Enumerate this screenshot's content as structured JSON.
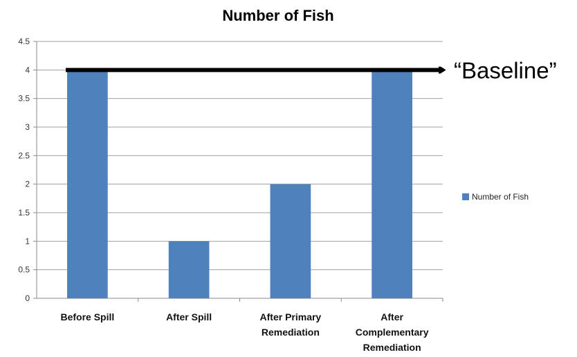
{
  "chart_data": {
    "type": "bar",
    "title": "Number of Fish",
    "categories": [
      [
        "Before Spill"
      ],
      [
        "After Spill"
      ],
      [
        "After Primary",
        "Remediation"
      ],
      [
        "After",
        "Complementary",
        "Remediation"
      ]
    ],
    "series": [
      {
        "name": "Number of Fish",
        "values": [
          4,
          1,
          2,
          4
        ],
        "color": "#4f81bd"
      }
    ],
    "ylim": [
      0,
      4.5
    ],
    "yticks": [
      "0",
      "0.5",
      "1",
      "1.5",
      "2",
      "2.5",
      "3",
      "3.5",
      "4",
      "4.5"
    ],
    "grid": true,
    "legend": "right",
    "annotation": {
      "text": "“Baseline”",
      "y": 4,
      "style": "arrow"
    }
  }
}
